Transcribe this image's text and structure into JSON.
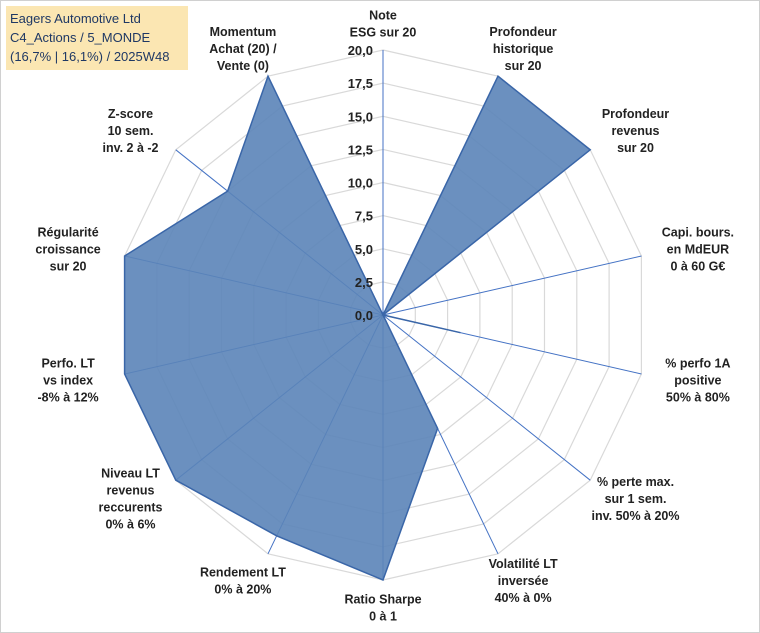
{
  "title_box": {
    "line1": "Eagers Automotive Ltd",
    "line2": "C4_Actions / 5_MONDE",
    "line3": "(16,7% | 16,1%) / 2025W48"
  },
  "colors": {
    "fill": "#5b84b8",
    "stroke": "#3a66a8",
    "grid": "#d9d9d9",
    "axis": "#4472c4"
  },
  "chart_data": {
    "type": "radar",
    "ylim": [
      0,
      20
    ],
    "ticks": [
      "0,0",
      "2,5",
      "5,0",
      "7,5",
      "10,0",
      "12,5",
      "15,0",
      "17,5",
      "20,0"
    ],
    "categories": [
      [
        "Note",
        "ESG sur 20"
      ],
      [
        "Profondeur",
        "historique",
        "sur 20"
      ],
      [
        "Profondeur",
        "revenus",
        "sur 20"
      ],
      [
        "Capi. bours.",
        "en MdEUR",
        "0 à 60 G€"
      ],
      [
        "% perfo 1A",
        "positive",
        "50% à 80%"
      ],
      [
        "% perte max.",
        "sur 1 sem.",
        "inv. 50% à 20%"
      ],
      [
        "Volatilité LT",
        "inversée",
        "40% à 0%"
      ],
      [
        "Ratio Sharpe",
        "0 à 1"
      ],
      [
        "Rendement LT",
        "0% à 20%"
      ],
      [
        "Niveau LT",
        "revenus",
        "reccurents",
        "0% à 6%"
      ],
      [
        "Perfo. LT",
        "vs index",
        "-8% à 12%"
      ],
      [
        "Régularité",
        "croissance",
        "sur 20"
      ],
      [
        "Z-score",
        "10 sem.",
        "inv. 2 à -2"
      ],
      [
        "Momentum",
        "Achat (20) /",
        "Vente (0)"
      ]
    ],
    "values": [
      0,
      20,
      20,
      0,
      6,
      0,
      9.5,
      20,
      18.5,
      20,
      20,
      20,
      15,
      20
    ]
  }
}
